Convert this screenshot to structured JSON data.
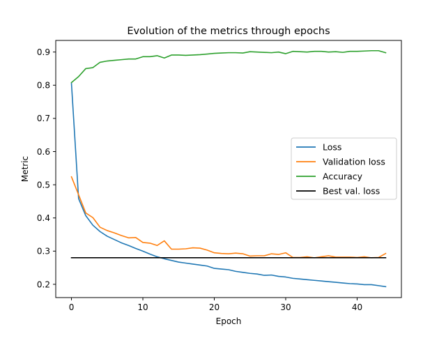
{
  "chart_data": {
    "type": "line",
    "title": "Evolution of the metrics through epochs",
    "xlabel": "Epoch",
    "ylabel": "Metric",
    "xlim": [
      -2.2,
      46.2
    ],
    "ylim": [
      0.16,
      0.935
    ],
    "x_ticks": [
      0,
      10,
      20,
      30,
      40
    ],
    "y_ticks": [
      0.2,
      0.3,
      0.4,
      0.5,
      0.6,
      0.7,
      0.8,
      0.9
    ],
    "grid": false,
    "legend_position": "center-right",
    "series": [
      {
        "name": "Loss",
        "color": "#1f77b4",
        "values": [
          0.805,
          0.458,
          0.407,
          0.378,
          0.359,
          0.345,
          0.335,
          0.325,
          0.317,
          0.308,
          0.3,
          0.291,
          0.283,
          0.277,
          0.272,
          0.267,
          0.264,
          0.261,
          0.258,
          0.255,
          0.248,
          0.246,
          0.244,
          0.239,
          0.236,
          0.233,
          0.231,
          0.227,
          0.228,
          0.224,
          0.222,
          0.218,
          0.216,
          0.214,
          0.212,
          0.21,
          0.208,
          0.206,
          0.204,
          0.202,
          0.201,
          0.199,
          0.199,
          0.196,
          0.193
        ]
      },
      {
        "name": "Validation loss",
        "color": "#ff7f0e",
        "values": [
          0.524,
          0.47,
          0.415,
          0.401,
          0.372,
          0.362,
          0.355,
          0.347,
          0.34,
          0.341,
          0.326,
          0.324,
          0.317,
          0.331,
          0.306,
          0.306,
          0.307,
          0.31,
          0.309,
          0.303,
          0.295,
          0.293,
          0.292,
          0.294,
          0.292,
          0.285,
          0.286,
          0.286,
          0.292,
          0.29,
          0.295,
          0.281,
          0.281,
          0.283,
          0.28,
          0.283,
          0.286,
          0.282,
          0.282,
          0.282,
          0.281,
          0.283,
          0.28,
          0.281,
          0.293
        ]
      },
      {
        "name": "Accuracy",
        "color": "#2ca02c",
        "values": [
          0.808,
          0.826,
          0.85,
          0.853,
          0.869,
          0.873,
          0.875,
          0.877,
          0.879,
          0.879,
          0.886,
          0.886,
          0.889,
          0.882,
          0.891,
          0.891,
          0.89,
          0.891,
          0.892,
          0.894,
          0.896,
          0.897,
          0.898,
          0.898,
          0.897,
          0.901,
          0.9,
          0.899,
          0.898,
          0.9,
          0.895,
          0.902,
          0.901,
          0.9,
          0.902,
          0.902,
          0.9,
          0.901,
          0.899,
          0.902,
          0.902,
          0.903,
          0.904,
          0.904,
          0.898
        ]
      },
      {
        "name": "Best val. loss",
        "color": "#000000",
        "values": [
          0.28,
          0.28
        ]
      }
    ],
    "best_val_loss_range": [
      0,
      44
    ]
  }
}
